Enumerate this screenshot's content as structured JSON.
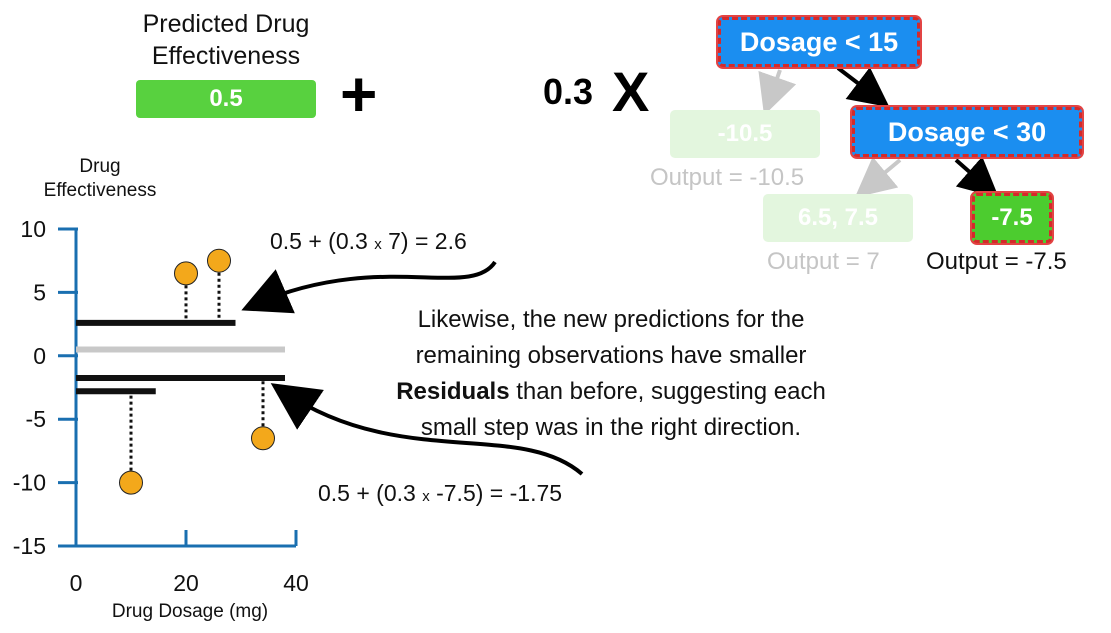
{
  "prediction": {
    "title_line1": "Predicted Drug",
    "title_line2": "Effectiveness",
    "value": "0.5",
    "plus": "+"
  },
  "learning_rate": {
    "value": "0.3",
    "times": "X"
  },
  "tree": {
    "root_label": "Dosage < 15",
    "inner_label": "Dosage < 30",
    "leaf_left_value": "-10.5",
    "leaf_left_output": "Output = -10.5",
    "leaf_mid_value": "6.5, 7.5",
    "leaf_mid_output": "Output = 7",
    "leaf_right_value": "-7.5",
    "leaf_right_output": "Output = -7.5"
  },
  "annotations": {
    "eq_top_a": "0.5 + (0.3",
    "eq_top_x": "x",
    "eq_top_b": "7) = 2.6",
    "eq_bottom_a": "0.5 + (0.3",
    "eq_bottom_x": "x",
    "eq_bottom_b": "-7.5) = -1.75",
    "note_line1": "Likewise, the new predictions for the",
    "note_line2": "remaining observations have smaller",
    "note_bold": "Residuals",
    "note_line3_rest": " than before, suggesting each",
    "note_line4": "small step was in the right direction."
  },
  "colors": {
    "axis": "#1a6fb0",
    "point": "#f3a81b",
    "prediction_line": "#111111",
    "baseline": "#c8c8c8",
    "split_node": "#1b8ef0",
    "leaf_active": "#4ccc2f",
    "highlight_border": "#d42a2a"
  },
  "chart_data": {
    "type": "scatter",
    "ylabel_line1": "Drug",
    "ylabel_line2": "Effectiveness",
    "xlabel": "Drug Dosage (mg)",
    "xlim": [
      0,
      40
    ],
    "ylim": [
      -15,
      10
    ],
    "x_ticks": [
      0,
      20,
      40
    ],
    "y_ticks": [
      10,
      5,
      0,
      -5,
      -10,
      -15
    ],
    "points": [
      {
        "x": 10,
        "y": -10
      },
      {
        "x": 20,
        "y": 6.5
      },
      {
        "x": 26,
        "y": 7.5
      },
      {
        "x": 34,
        "y": -6.5
      }
    ],
    "residual_pairs": [
      {
        "x": 10,
        "from": -10,
        "to": -2.8
      },
      {
        "x": 20,
        "from": 6.5,
        "to": 2.6
      },
      {
        "x": 26,
        "from": 7.5,
        "to": 2.6
      },
      {
        "x": 34,
        "from": -6.5,
        "to": -1.75
      }
    ],
    "baseline": {
      "y": 0.5,
      "x_from": 0,
      "x_to": 38
    },
    "prediction_segments": [
      {
        "y": 2.6,
        "x_from": 0,
        "x_to": 29
      },
      {
        "y": -1.75,
        "x_from": 0,
        "x_to": 38
      },
      {
        "y": -2.8,
        "x_from": 0,
        "x_to": 14.5
      }
    ]
  }
}
